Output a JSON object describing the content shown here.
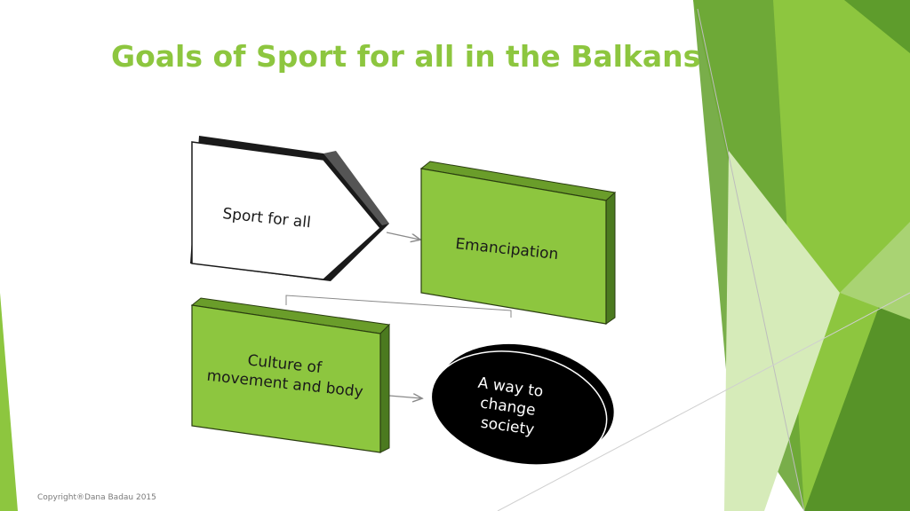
{
  "slide": {
    "title": "Goals of Sport for all in the Balkans",
    "footer": "Copyright®Dana Badau 2015"
  },
  "diagram": {
    "nodes": [
      {
        "id": "sport-for-all",
        "label": "Sport for all",
        "shape": "pentagon-arrow",
        "fill": "#ffffff"
      },
      {
        "id": "emancipation",
        "label": "Emancipation",
        "shape": "3d-box",
        "fill": "#8dc63f"
      },
      {
        "id": "culture",
        "label_lines": [
          "Culture of",
          "movement and body"
        ],
        "shape": "3d-box",
        "fill": "#8dc63f"
      },
      {
        "id": "way-to-change",
        "label_lines": [
          "A way to",
          "change",
          "society"
        ],
        "shape": "ellipse",
        "fill": "#000000",
        "text_color": "#ffffff"
      }
    ],
    "connections": [
      {
        "from": "sport-for-all",
        "to": "emancipation"
      },
      {
        "from": "emancipation",
        "to": "culture"
      },
      {
        "from": "culture",
        "to": "way-to-change"
      }
    ]
  },
  "theme": {
    "accent": "#8dc63f",
    "accent_dark": "#5e9c2c",
    "accent_light": "#c9e4a6"
  }
}
